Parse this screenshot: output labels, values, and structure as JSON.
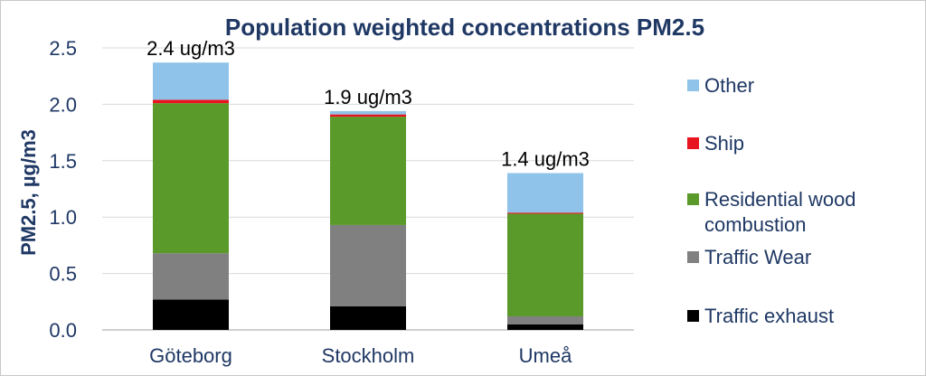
{
  "chart_data": {
    "type": "bar",
    "stacked": true,
    "title": "Population weighted concentrations PM2.5",
    "ylabel": "PM2.5, µg/m3",
    "xlabel": "",
    "ylim": [
      0,
      2.5
    ],
    "yticks": [
      "0.0",
      "0.5",
      "1.0",
      "1.5",
      "2.0",
      "2.5"
    ],
    "grid": true,
    "legend_position": "right",
    "categories": [
      "Göteborg",
      "Stockholm",
      "Umeå"
    ],
    "totals_labels": [
      "2.4 ug/m3",
      "1.9 ug/m3",
      "1.4 ug/m3"
    ],
    "series": [
      {
        "name": "Traffic exhaust",
        "color": "#000000",
        "values": [
          0.27,
          0.21,
          0.05
        ]
      },
      {
        "name": "Traffic Wear",
        "color": "#808080",
        "values": [
          0.41,
          0.72,
          0.07
        ]
      },
      {
        "name": "Residential wood combustion",
        "color": "#5a9a2a",
        "values": [
          1.33,
          0.96,
          0.91
        ]
      },
      {
        "name": "Ship",
        "color": "#e8141e",
        "values": [
          0.03,
          0.02,
          0.01
        ]
      },
      {
        "name": "Other",
        "color": "#8fc3ea",
        "values": [
          0.33,
          0.03,
          0.35
        ]
      }
    ],
    "legend_order": [
      "Other",
      "Ship",
      "Residential wood combustion",
      "Traffic Wear",
      "Traffic exhaust"
    ],
    "legend_text": {
      "Other": [
        "Other"
      ],
      "Ship": [
        "Ship"
      ],
      "Residential wood combustion": [
        "Residential wood",
        "combustion"
      ],
      "Traffic Wear": [
        "Traffic Wear"
      ],
      "Traffic exhaust": [
        "Traffic exhaust"
      ]
    }
  }
}
